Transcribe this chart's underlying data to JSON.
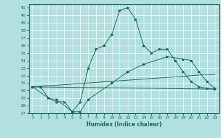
{
  "xlabel": "Humidex (Indice chaleur)",
  "background_color": "#b2e0e0",
  "grid_color": "#ffffff",
  "line_color": "#1a6b5a",
  "xmin": 0,
  "xmax": 23,
  "ymin": 27,
  "ymax": 41,
  "line1_x": [
    0,
    1,
    2,
    3,
    4,
    5,
    6,
    7,
    8,
    9,
    10,
    11,
    12,
    13,
    14,
    15,
    16,
    17,
    18,
    19,
    20,
    21,
    22,
    23
  ],
  "line1_y": [
    30.5,
    30.5,
    29.0,
    28.5,
    28.5,
    27.2,
    28.5,
    33.0,
    35.5,
    36.0,
    37.5,
    40.7,
    41.0,
    39.5,
    36.0,
    35.0,
    35.5,
    35.5,
    34.0,
    32.5,
    31.2,
    30.5,
    30.3,
    30.2
  ],
  "line2_x": [
    0,
    2,
    3,
    5,
    6,
    7,
    10,
    12,
    14,
    17,
    19,
    20,
    21,
    22,
    23
  ],
  "line2_y": [
    30.5,
    29.0,
    28.8,
    27.2,
    27.2,
    28.8,
    31.0,
    32.5,
    33.5,
    34.5,
    34.2,
    34.0,
    32.5,
    31.2,
    30.3
  ],
  "line3_x": [
    0,
    23
  ],
  "line3_y": [
    30.5,
    32.2
  ],
  "line4_x": [
    0,
    23
  ],
  "line4_y": [
    30.5,
    30.2
  ]
}
